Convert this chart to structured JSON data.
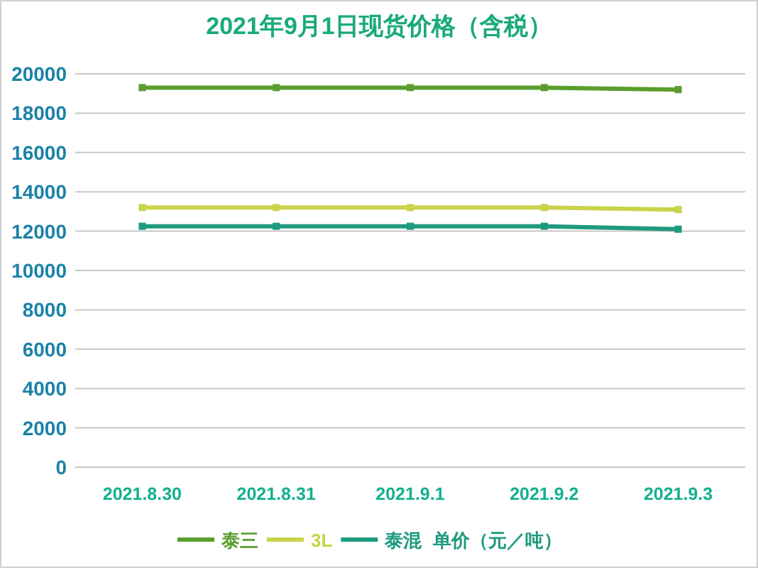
{
  "chart_data": {
    "type": "line",
    "title": "2021年9月1日现货价格（含税）",
    "annotations": [
      "单价（元／吨）"
    ],
    "categories": [
      "2021.8.30",
      "2021.8.31",
      "2021.9.1",
      "2021.9.2",
      "2021.9.3"
    ],
    "series": [
      {
        "name": "泰三",
        "color": "#5a9e2e",
        "values": [
          19300,
          19300,
          19300,
          19300,
          19200
        ]
      },
      {
        "name": "3L",
        "color": "#c8d44a",
        "values": [
          13200,
          13200,
          13200,
          13200,
          13100
        ]
      },
      {
        "name": "泰混",
        "color": "#1e9a7e",
        "values": [
          12250,
          12250,
          12250,
          12250,
          12100
        ]
      }
    ],
    "ylim": [
      0,
      20000
    ],
    "yticks": [
      0,
      2000,
      4000,
      6000,
      8000,
      10000,
      12000,
      14000,
      16000,
      18000,
      20000
    ],
    "grid": "y",
    "legend": "bottom",
    "marker": "square",
    "line_style": "solid"
  }
}
